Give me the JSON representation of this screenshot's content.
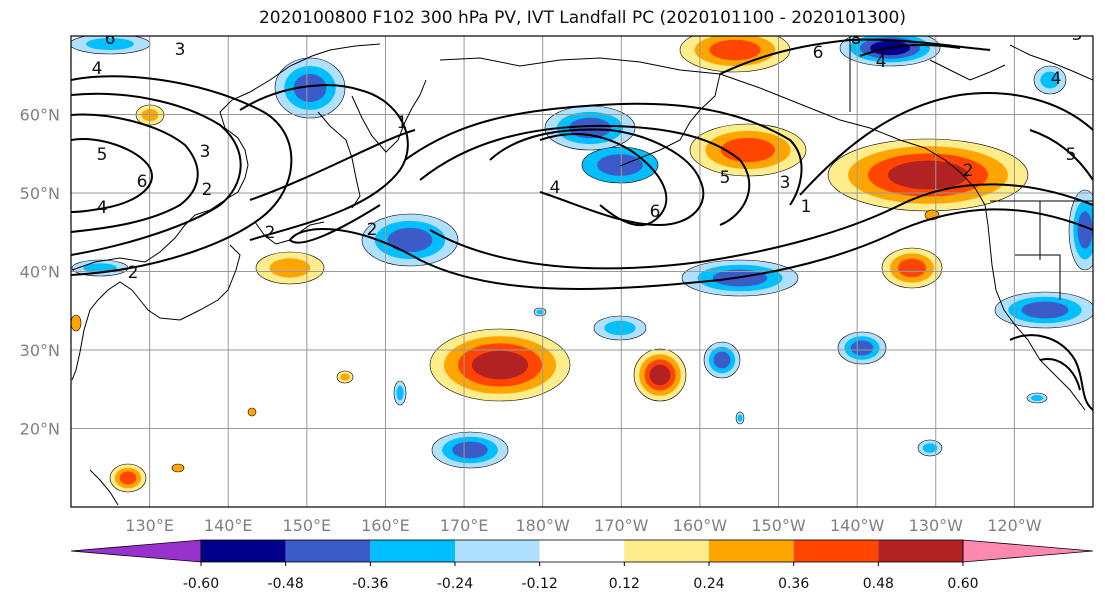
{
  "title": "2020100800 F102 300 hPa PV, IVT Landfall PC (2020101100 - 2020101300)",
  "map": {
    "lon_range": [
      120,
      250
    ],
    "lat_range": [
      10,
      70
    ],
    "lat_labels": [
      "20°N",
      "30°N",
      "40°N",
      "50°N",
      "60°N"
    ],
    "lon_labels": [
      "130°E",
      "140°E",
      "150°E",
      "160°E",
      "170°E",
      "180°W",
      "170°W",
      "160°W",
      "150°W",
      "140°W",
      "130°W",
      "120°W"
    ],
    "grid": true,
    "pv_contour_labels": [
      "6",
      "4",
      "3",
      "5",
      "6",
      "4",
      "2",
      "2",
      "2",
      "1",
      "3",
      "4",
      "6",
      "5",
      "3",
      "1",
      "6",
      "8",
      "4",
      "3",
      "5",
      "2",
      "2",
      "4"
    ]
  },
  "colorbar": {
    "ticks": [
      "-0.60",
      "-0.48",
      "-0.36",
      "-0.24",
      "-0.12",
      "0.12",
      "0.24",
      "0.36",
      "0.48",
      "0.60"
    ],
    "colors": [
      "#9932CC",
      "#00008B",
      "#3A5BC8",
      "#00BFFF",
      "#B0E0FF",
      "#FFFFFF",
      "#FFEC8B",
      "#FFA500",
      "#FF4500",
      "#B22222",
      "#FF88B0"
    ]
  },
  "colors": {
    "axes": "#000000",
    "grid": "#999999",
    "label": "#808080",
    "contour": "#000000"
  }
}
